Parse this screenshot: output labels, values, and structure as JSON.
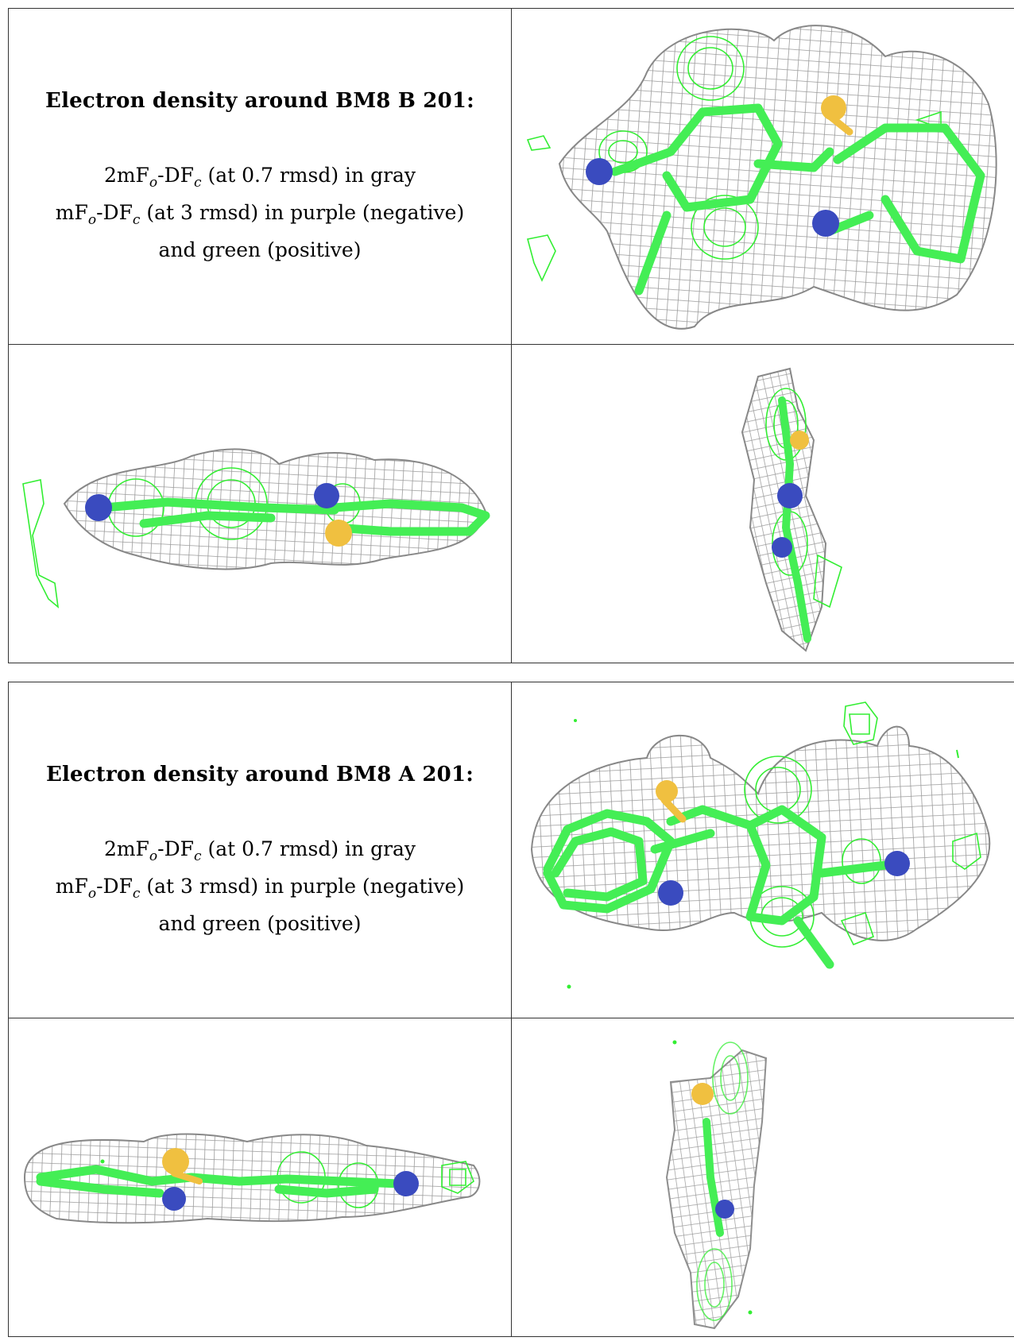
{
  "panels": [
    {
      "heading": "Electron density around BM8 B 201:",
      "lines": [
        {
          "pre": "2mF",
          "sub1": "o",
          "mid": "-DF",
          "sub2": "c",
          "post": " (at 0.7 rmsd) in gray"
        },
        {
          "pre": "mF",
          "sub1": "o",
          "mid": "-DF",
          "sub2": "c",
          "post": " (at 3 rmsd) in purple (negative)"
        }
      ],
      "last_line": "and green (positive)",
      "views": [
        "front-view",
        "side-view",
        "edge-view"
      ]
    },
    {
      "heading": "Electron density around BM8 A 201:",
      "lines": [
        {
          "pre": "2mF",
          "sub1": "o",
          "mid": "-DF",
          "sub2": "c",
          "post": " (at 0.7 rmsd) in gray"
        },
        {
          "pre": "mF",
          "sub1": "o",
          "mid": "-DF",
          "sub2": "c",
          "post": " (at 3 rmsd) in purple (negative)"
        }
      ],
      "last_line": "and green (positive)",
      "views": [
        "front-view",
        "side-view",
        "edge-view"
      ]
    }
  ],
  "colors": {
    "mesh_gray": "#9a9a9a",
    "mesh_green": "#33ee33",
    "carbon_green": "#44ee55",
    "nitrogen_blue": "#3a4bbf",
    "sulfur_yellow": "#f0c040"
  }
}
